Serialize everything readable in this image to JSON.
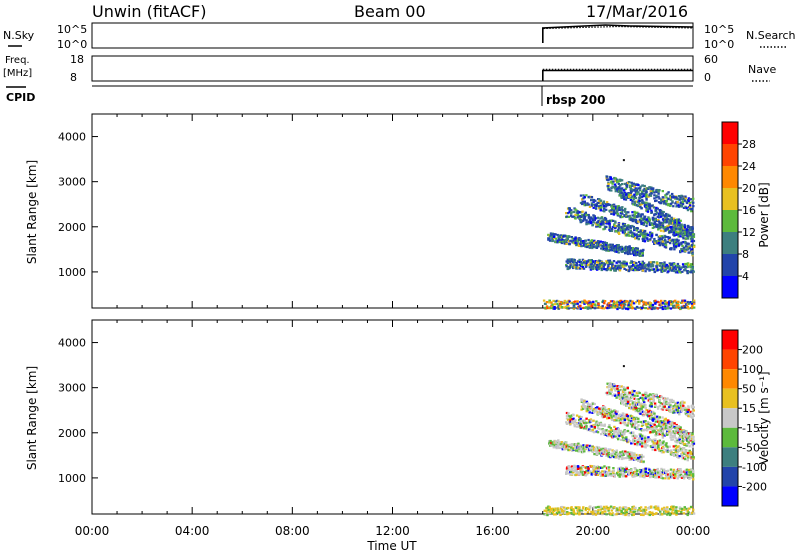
{
  "header": {
    "title": "Unwin (fitACF)",
    "beam": "Beam 00",
    "date": "17/Mar/2016"
  },
  "panel_labels": {
    "nsky": "N.Sky",
    "nsearch": "N.Search",
    "freq_line1": "Freq.",
    "freq_line2": "[MHz]",
    "nave": "Nave",
    "cpid": "CPID",
    "cpid_value": "rbsp 200"
  },
  "chart_data": [
    {
      "type": "line",
      "name": "noise-panel",
      "left_axis": {
        "ticks": [
          "10^5",
          "10^0"
        ]
      },
      "right_axis": {
        "ticks": [
          "10^5",
          "10^0"
        ]
      },
      "x_range": [
        0,
        24
      ],
      "series": [
        {
          "name": "N.Sky",
          "segments": [
            [
              18.0,
              0.2
            ],
            [
              18.0,
              0.8
            ],
            [
              20.5,
              0.92
            ],
            [
              21.5,
              0.88
            ],
            [
              24.0,
              0.84
            ]
          ]
        },
        {
          "name": "N.Search",
          "segments": [
            [
              18.0,
              0.2
            ],
            [
              18.0,
              0.78
            ],
            [
              21.0,
              0.86
            ],
            [
              24.0,
              0.8
            ]
          ]
        }
      ]
    },
    {
      "type": "line",
      "name": "freq-nave-panel",
      "left_axis": {
        "ticks": [
          "18",
          "8"
        ]
      },
      "right_axis": {
        "ticks": [
          "60",
          "0"
        ]
      },
      "x_range": [
        0,
        24
      ],
      "series": [
        {
          "name": "Freq",
          "segments": [
            [
              18.0,
              0.0
            ],
            [
              18.0,
              0.42
            ],
            [
              24.0,
              0.42
            ]
          ]
        },
        {
          "name": "Nave",
          "segments": [
            [
              18.0,
              0.47
            ],
            [
              24.0,
              0.47
            ]
          ]
        }
      ]
    },
    {
      "type": "heatmap",
      "name": "power",
      "ylabel": "Slant Range [km]",
      "ylim": [
        200,
        4500
      ],
      "yticks": [
        1000,
        2000,
        3000,
        4000
      ],
      "x_range": [
        0,
        24
      ],
      "colorbar": {
        "label": "Power [dB]",
        "ticks": [
          "4",
          "8",
          "12",
          "16",
          "20",
          "24",
          "28"
        ],
        "colors": [
          "#0000ff",
          "#2244aa",
          "#3d7f7f",
          "#5cba3c",
          "#e8c020",
          "#ff8800",
          "#ff4400",
          "#ff0000"
        ]
      }
    },
    {
      "type": "heatmap",
      "name": "velocity",
      "ylabel": "Slant Range [km]",
      "ylim": [
        200,
        4500
      ],
      "yticks": [
        1000,
        2000,
        3000,
        4000
      ],
      "x_range": [
        0,
        24
      ],
      "xlabel": "Time UT",
      "xticks": [
        "00:00",
        "04:00",
        "08:00",
        "12:00",
        "16:00",
        "20:00",
        "00:00"
      ],
      "colorbar": {
        "label": "Velocity [m s⁻¹]",
        "ticks": [
          "200",
          "100",
          "50",
          "15",
          "-15",
          "-50",
          "-100",
          "-200"
        ],
        "colors": [
          "#0000ff",
          "#2244aa",
          "#3d7f7f",
          "#5cba3c",
          "#c8c8c8",
          "#e8c020",
          "#ff8800",
          "#ff4400",
          "#ff0000"
        ]
      }
    }
  ],
  "echo_bands": [
    {
      "t0": 18.0,
      "r0": 250,
      "t1": 24.0,
      "r1": 250,
      "spread": 140
    },
    {
      "t0": 18.9,
      "r0": 1200,
      "t1": 24.0,
      "r1": 1100,
      "spread": 110
    },
    {
      "t0": 18.9,
      "r0": 2350,
      "t1": 24.0,
      "r1": 1500,
      "spread": 130
    },
    {
      "t0": 19.5,
      "r0": 2650,
      "t1": 24.0,
      "r1": 1800,
      "spread": 120
    },
    {
      "t0": 20.5,
      "r0": 3000,
      "t1": 24.0,
      "r1": 2500,
      "spread": 150
    },
    {
      "t0": 21.0,
      "r0": 2800,
      "t1": 24.0,
      "r1": 1900,
      "spread": 100
    },
    {
      "t0": 18.2,
      "r0": 1800,
      "t1": 22.0,
      "r1": 1450,
      "spread": 90
    }
  ]
}
